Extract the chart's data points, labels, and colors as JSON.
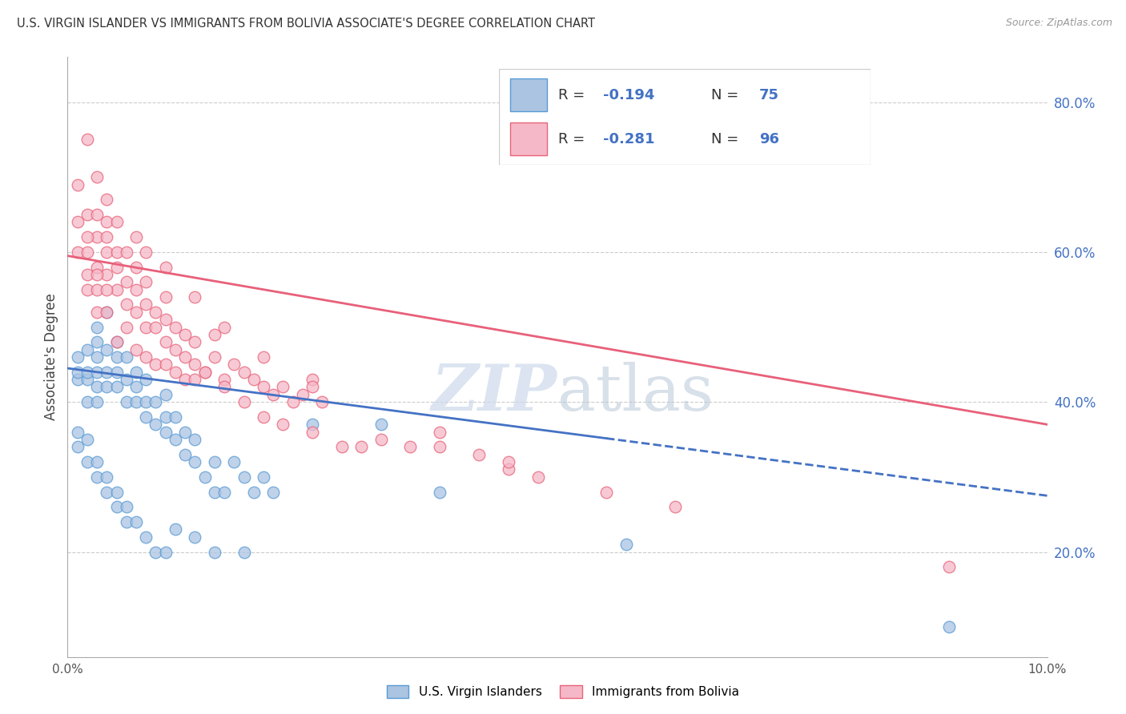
{
  "title": "U.S. VIRGIN ISLANDER VS IMMIGRANTS FROM BOLIVIA ASSOCIATE'S DEGREE CORRELATION CHART",
  "source": "Source: ZipAtlas.com",
  "ylabel": "Associate's Degree",
  "x_min": 0.0,
  "x_max": 0.1,
  "y_min": 0.06,
  "y_max": 0.86,
  "y_ticks": [
    0.2,
    0.4,
    0.6,
    0.8
  ],
  "y_tick_labels": [
    "20.0%",
    "40.0%",
    "60.0%",
    "80.0%"
  ],
  "blue_R": -0.194,
  "blue_N": 75,
  "pink_R": -0.281,
  "pink_N": 96,
  "blue_color": "#aac4e2",
  "pink_color": "#f5b8c8",
  "blue_edge_color": "#5b9bd5",
  "pink_edge_color": "#e8647a",
  "blue_line_color": "#4472c4",
  "pink_line_color": "#e8607a",
  "watermark_color": "#ccd9ea",
  "legend_labels": [
    "U.S. Virgin Islanders",
    "Immigrants from Bolivia"
  ],
  "blue_line_x0": 0.0,
  "blue_line_y0": 0.445,
  "blue_line_x1": 0.1,
  "blue_line_y1": 0.275,
  "blue_solid_xend": 0.055,
  "pink_line_x0": 0.0,
  "pink_line_y0": 0.595,
  "pink_line_x1": 0.1,
  "pink_line_y1": 0.37,
  "blue_scatter_x": [
    0.001,
    0.001,
    0.001,
    0.002,
    0.002,
    0.002,
    0.002,
    0.003,
    0.003,
    0.003,
    0.003,
    0.003,
    0.003,
    0.004,
    0.004,
    0.004,
    0.004,
    0.005,
    0.005,
    0.005,
    0.005,
    0.006,
    0.006,
    0.006,
    0.007,
    0.007,
    0.007,
    0.008,
    0.008,
    0.008,
    0.009,
    0.009,
    0.01,
    0.01,
    0.01,
    0.011,
    0.011,
    0.012,
    0.012,
    0.013,
    0.013,
    0.014,
    0.015,
    0.015,
    0.016,
    0.017,
    0.018,
    0.019,
    0.02,
    0.021,
    0.001,
    0.001,
    0.002,
    0.002,
    0.003,
    0.003,
    0.004,
    0.004,
    0.005,
    0.005,
    0.006,
    0.006,
    0.007,
    0.008,
    0.009,
    0.01,
    0.011,
    0.013,
    0.015,
    0.018,
    0.025,
    0.032,
    0.038,
    0.057,
    0.09
  ],
  "blue_scatter_y": [
    0.43,
    0.44,
    0.46,
    0.4,
    0.43,
    0.44,
    0.47,
    0.4,
    0.42,
    0.44,
    0.46,
    0.48,
    0.5,
    0.42,
    0.44,
    0.47,
    0.52,
    0.42,
    0.44,
    0.46,
    0.48,
    0.4,
    0.43,
    0.46,
    0.4,
    0.42,
    0.44,
    0.38,
    0.4,
    0.43,
    0.37,
    0.4,
    0.36,
    0.38,
    0.41,
    0.35,
    0.38,
    0.33,
    0.36,
    0.32,
    0.35,
    0.3,
    0.28,
    0.32,
    0.28,
    0.32,
    0.3,
    0.28,
    0.3,
    0.28,
    0.34,
    0.36,
    0.32,
    0.35,
    0.3,
    0.32,
    0.28,
    0.3,
    0.26,
    0.28,
    0.24,
    0.26,
    0.24,
    0.22,
    0.2,
    0.2,
    0.23,
    0.22,
    0.2,
    0.2,
    0.37,
    0.37,
    0.28,
    0.21,
    0.1
  ],
  "pink_scatter_x": [
    0.001,
    0.001,
    0.002,
    0.002,
    0.002,
    0.003,
    0.003,
    0.003,
    0.003,
    0.004,
    0.004,
    0.004,
    0.004,
    0.005,
    0.005,
    0.005,
    0.006,
    0.006,
    0.006,
    0.007,
    0.007,
    0.007,
    0.008,
    0.008,
    0.008,
    0.009,
    0.009,
    0.01,
    0.01,
    0.01,
    0.011,
    0.011,
    0.012,
    0.012,
    0.013,
    0.013,
    0.014,
    0.015,
    0.015,
    0.016,
    0.017,
    0.018,
    0.019,
    0.02,
    0.021,
    0.022,
    0.023,
    0.024,
    0.025,
    0.026,
    0.001,
    0.002,
    0.002,
    0.003,
    0.003,
    0.004,
    0.004,
    0.005,
    0.006,
    0.007,
    0.008,
    0.009,
    0.01,
    0.011,
    0.012,
    0.013,
    0.014,
    0.016,
    0.018,
    0.02,
    0.022,
    0.025,
    0.028,
    0.03,
    0.032,
    0.035,
    0.038,
    0.042,
    0.045,
    0.048,
    0.002,
    0.003,
    0.004,
    0.005,
    0.007,
    0.008,
    0.01,
    0.013,
    0.016,
    0.02,
    0.025,
    0.038,
    0.045,
    0.055,
    0.062,
    0.09
  ],
  "pink_scatter_y": [
    0.6,
    0.64,
    0.55,
    0.6,
    0.65,
    0.55,
    0.58,
    0.62,
    0.65,
    0.57,
    0.6,
    0.62,
    0.64,
    0.55,
    0.58,
    0.6,
    0.53,
    0.56,
    0.6,
    0.52,
    0.55,
    0.58,
    0.5,
    0.53,
    0.56,
    0.5,
    0.52,
    0.48,
    0.51,
    0.54,
    0.47,
    0.5,
    0.46,
    0.49,
    0.45,
    0.48,
    0.44,
    0.46,
    0.49,
    0.43,
    0.45,
    0.44,
    0.43,
    0.42,
    0.41,
    0.42,
    0.4,
    0.41,
    0.43,
    0.4,
    0.69,
    0.57,
    0.62,
    0.52,
    0.57,
    0.52,
    0.55,
    0.48,
    0.5,
    0.47,
    0.46,
    0.45,
    0.45,
    0.44,
    0.43,
    0.43,
    0.44,
    0.42,
    0.4,
    0.38,
    0.37,
    0.36,
    0.34,
    0.34,
    0.35,
    0.34,
    0.34,
    0.33,
    0.31,
    0.3,
    0.75,
    0.7,
    0.67,
    0.64,
    0.62,
    0.6,
    0.58,
    0.54,
    0.5,
    0.46,
    0.42,
    0.36,
    0.32,
    0.28,
    0.26,
    0.18
  ]
}
